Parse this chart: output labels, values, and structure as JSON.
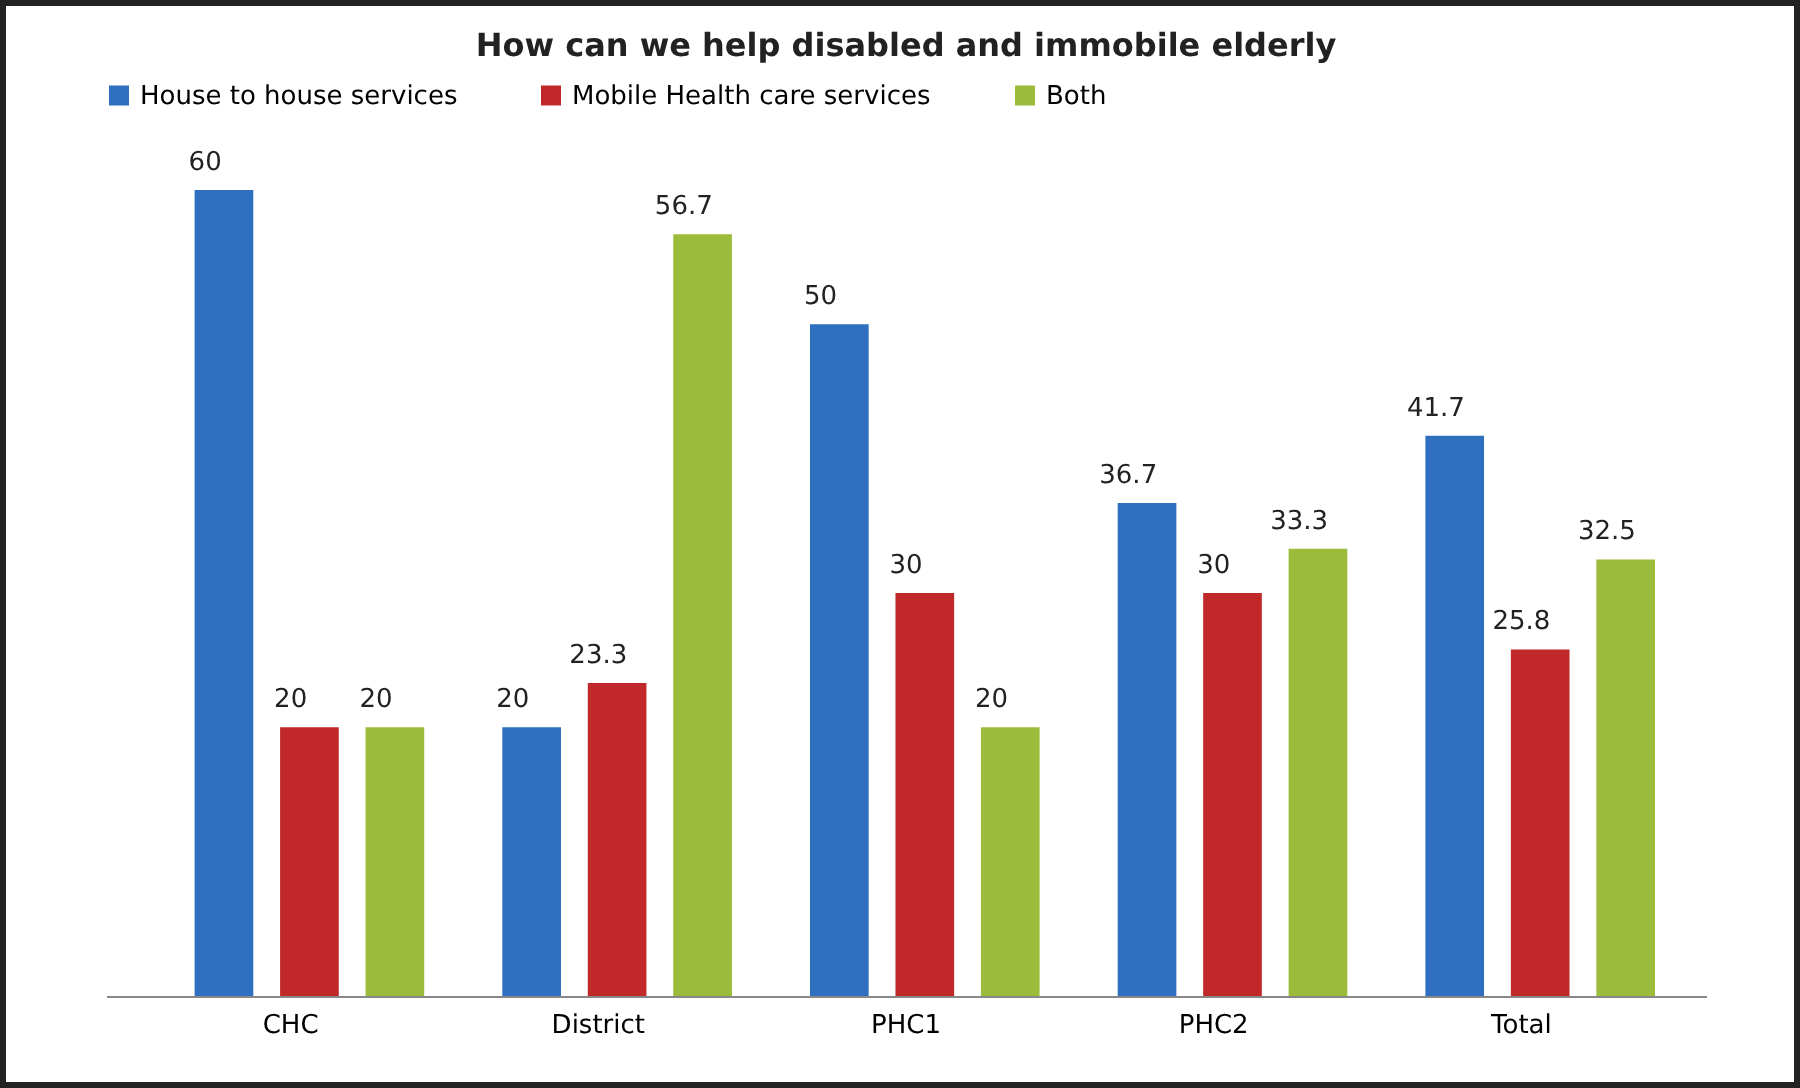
{
  "chart_data": {
    "type": "bar",
    "title": "How can we help disabled and immobile elderly",
    "categories": [
      "CHC",
      "District",
      "PHC1",
      "PHC2",
      "Total"
    ],
    "series": [
      {
        "name": "House to house services",
        "color": "#2e6fc0",
        "values": [
          60,
          20,
          50,
          36.7,
          41.7
        ]
      },
      {
        "name": "Mobile Health care services",
        "color": "#c0282a",
        "values": [
          20,
          23.3,
          30,
          30,
          25.8
        ]
      },
      {
        "name": "Both",
        "color": "#9bbb3a",
        "values": [
          20,
          56.7,
          20,
          33.3,
          32.5
        ]
      }
    ],
    "data_labels": true,
    "legend": "top"
  }
}
